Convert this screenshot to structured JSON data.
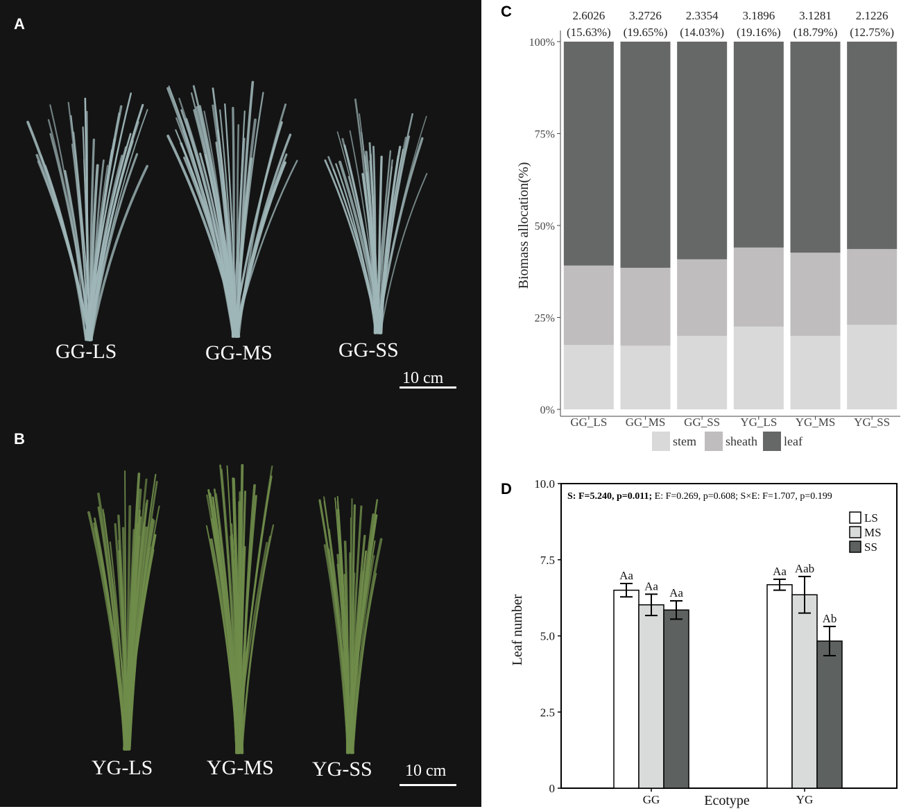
{
  "panel_a": {
    "letter": "A",
    "labels": [
      "GG-LS",
      "GG-MS",
      "GG-SS"
    ],
    "scale_label": "10 cm",
    "leaf_color": "#9fb6b8",
    "background": "#141414"
  },
  "panel_b": {
    "letter": "B",
    "labels": [
      "YG-LS",
      "YG-MS",
      "YG-SS"
    ],
    "scale_label": "10 cm",
    "leaf_color": "#6f8c4a",
    "background": "#141414"
  },
  "chart_data": [
    {
      "panel": "C",
      "type": "bar",
      "stacked": true,
      "categories": [
        "GG_LS",
        "GG_MS",
        "GG_SS",
        "YG_LS",
        "YG_MS",
        "YG_SS"
      ],
      "series": [
        {
          "name": "stem",
          "color": "#d9d9d9",
          "values": [
            17.5,
            17.3,
            20.0,
            22.5,
            20.0,
            23.0
          ]
        },
        {
          "name": "sheath",
          "color": "#bfbdbe",
          "values": [
            21.6,
            21.2,
            20.8,
            21.5,
            22.6,
            20.6
          ]
        },
        {
          "name": "leaf",
          "color": "#666867",
          "values": [
            60.9,
            61.5,
            59.2,
            56.0,
            57.4,
            56.4
          ]
        }
      ],
      "top_values": [
        "2.6026",
        "3.2726",
        "2.3354",
        "3.1896",
        "3.1281",
        "2.1226"
      ],
      "top_percents": [
        "(15.63%)",
        "(19.65%)",
        "(14.03%)",
        "(19.16%)",
        "(18.79%)",
        "(12.75%)"
      ],
      "ylabel": "Biomass allocation(%)",
      "xlabel": "",
      "ylim": [
        0,
        100
      ],
      "yticks": [
        "0%",
        "25%",
        "50%",
        "75%",
        "100%"
      ],
      "legend_position": "bottom",
      "grid": false
    },
    {
      "panel": "D",
      "type": "bar",
      "categories": [
        "GG",
        "YG"
      ],
      "series": [
        {
          "name": "LS",
          "color": "#ffffff",
          "values": [
            6.5,
            6.68
          ],
          "errors": [
            0.22,
            0.18
          ],
          "letters": [
            "Aa",
            "Aa"
          ]
        },
        {
          "name": "MS",
          "color": "#d9dbda",
          "values": [
            6.02,
            6.35
          ],
          "errors": [
            0.35,
            0.6
          ],
          "letters": [
            "Aa",
            "Aab"
          ]
        },
        {
          "name": "SS",
          "color": "#5d6160",
          "values": [
            5.85,
            4.83
          ],
          "errors": [
            0.3,
            0.48
          ],
          "letters": [
            "Aa",
            "Ab"
          ]
        }
      ],
      "stats_text": {
        "bold_part": "S: F=5.240, p=0.011;",
        "rest": " E: F=0.269, p=0.608; S×E: F=1.707, p=0.199"
      },
      "xlabel": "Ecotype",
      "ylabel": "Leaf number",
      "ylim": [
        0,
        10
      ],
      "yticks": [
        "0",
        "2.5",
        "5.0",
        "7.5",
        "10.0"
      ],
      "legend_position": "top-right",
      "grid": false
    }
  ]
}
